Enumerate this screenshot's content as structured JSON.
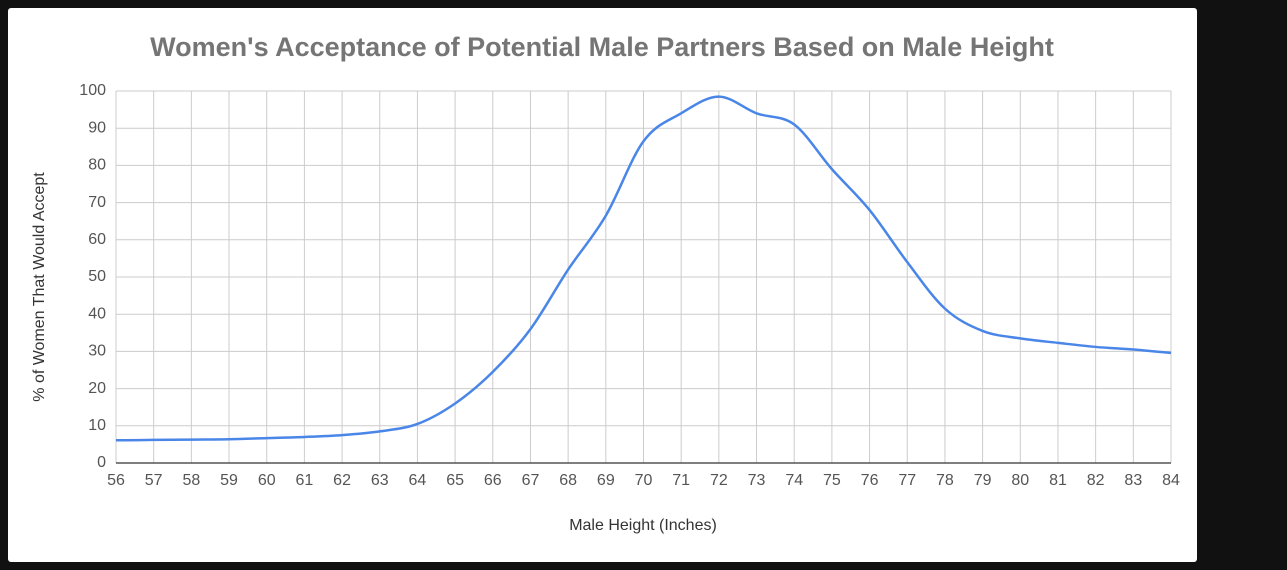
{
  "chart_data": {
    "type": "line",
    "title": "Women's Acceptance of Potential Male Partners Based on Male Height",
    "x_label": "Male Height (Inches)",
    "y_label": "% of Women That Would Accept",
    "x": [
      56,
      57,
      58,
      59,
      60,
      61,
      62,
      63,
      64,
      65,
      66,
      67,
      68,
      69,
      70,
      71,
      72,
      73,
      74,
      75,
      76,
      77,
      78,
      79,
      80,
      81,
      82,
      83,
      84
    ],
    "values": [
      6.1,
      6.2,
      6.3,
      6.4,
      6.7,
      7.0,
      7.5,
      8.5,
      10.5,
      16,
      24.5,
      36,
      52,
      66.5,
      86.5,
      94,
      98.5,
      94,
      91,
      79,
      68,
      54,
      41.5,
      35.5,
      33.5,
      32.3,
      31.2,
      30.5,
      29.6
    ],
    "color": "#4a86e8",
    "xlim": [
      56,
      84
    ],
    "xticks": [
      56,
      57,
      58,
      59,
      60,
      61,
      62,
      63,
      64,
      65,
      66,
      67,
      68,
      69,
      70,
      71,
      72,
      73,
      74,
      75,
      76,
      77,
      78,
      79,
      80,
      81,
      82,
      83,
      84
    ],
    "ylim": [
      0,
      100
    ],
    "yticks": [
      0,
      10,
      20,
      30,
      40,
      50,
      60,
      70,
      80,
      90,
      100
    ],
    "grid": true
  }
}
